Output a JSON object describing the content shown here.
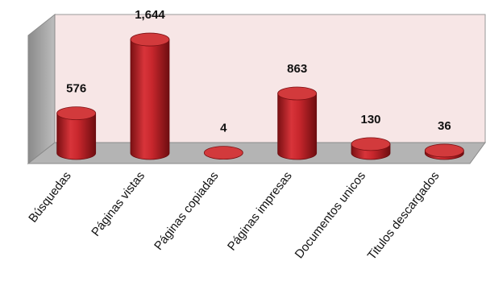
{
  "chart_data": {
    "type": "bar",
    "style": "3d-cylinder",
    "categories": [
      "Búsquedas",
      "Páginas vistas",
      "Páginas copiadas",
      "Páginas impresas",
      "Documentos unicos",
      "Titulos descargados"
    ],
    "values": [
      576,
      1644,
      4,
      863,
      130,
      36
    ],
    "data_labels": [
      "576",
      "1,644",
      "4",
      "863",
      "130",
      "36"
    ],
    "ylim": [
      0,
      1750
    ],
    "grid": false,
    "legend": "none",
    "colors": {
      "bar": "#c0272d",
      "bar_top": "#d23a3c",
      "back_wall": "#f7e6e6",
      "side_wall": "#a9a9a9",
      "floor": "#b4b4b4"
    }
  }
}
